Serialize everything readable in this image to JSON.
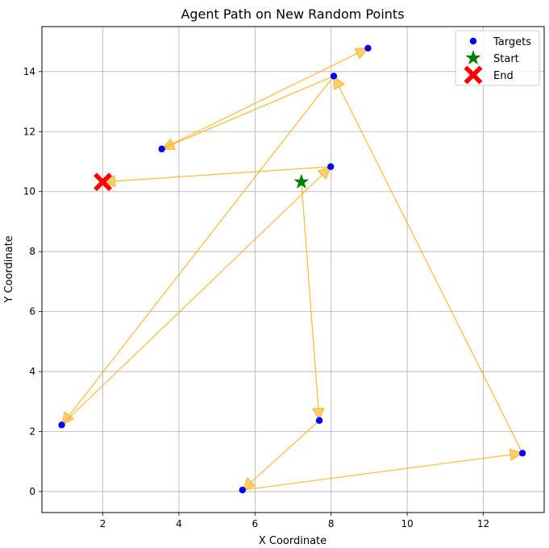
{
  "chart_data": {
    "type": "scatter",
    "title": "Agent Path on New Random Points",
    "xlabel": "X Coordinate",
    "ylabel": "Y Coordinate",
    "xlim": [
      0.4,
      13.6
    ],
    "ylim": [
      -0.7,
      15.5
    ],
    "xticks": [
      2,
      4,
      6,
      8,
      10,
      12
    ],
    "yticks": [
      0,
      2,
      4,
      6,
      8,
      10,
      12,
      14
    ],
    "grid": true,
    "legend_position": "top-right",
    "colors": {
      "targets": "#0000ff",
      "start": "#008000",
      "end": "#ff0000",
      "path": "#ffa500"
    },
    "legend": [
      {
        "label": "Targets",
        "marker": "circle",
        "color": "#0000ff"
      },
      {
        "label": "Start",
        "marker": "star",
        "color": "#008000"
      },
      {
        "label": "End",
        "marker": "x",
        "color": "#ff0000"
      }
    ],
    "targets": [
      {
        "x": 8.97,
        "y": 14.78
      },
      {
        "x": 8.07,
        "y": 13.85
      },
      {
        "x": 3.55,
        "y": 11.42
      },
      {
        "x": 7.99,
        "y": 10.83
      },
      {
        "x": 0.92,
        "y": 2.22
      },
      {
        "x": 7.69,
        "y": 2.37
      },
      {
        "x": 5.67,
        "y": 0.05
      },
      {
        "x": 13.03,
        "y": 1.28
      }
    ],
    "start": {
      "x": 7.22,
      "y": 10.32
    },
    "end": {
      "x": 2.0,
      "y": 10.32
    },
    "path": [
      {
        "x": 7.22,
        "y": 10.32
      },
      {
        "x": 7.69,
        "y": 2.37
      },
      {
        "x": 5.67,
        "y": 0.05
      },
      {
        "x": 13.03,
        "y": 1.28
      },
      {
        "x": 8.07,
        "y": 13.85
      },
      {
        "x": 0.92,
        "y": 2.22
      },
      {
        "x": 7.99,
        "y": 10.83
      },
      {
        "x": 2.0,
        "y": 10.32
      }
    ],
    "path_extra": [
      {
        "from": {
          "x": 3.55,
          "y": 11.42
        },
        "to": {
          "x": 8.97,
          "y": 14.78
        }
      },
      {
        "from": {
          "x": 8.07,
          "y": 13.85
        },
        "to": {
          "x": 3.55,
          "y": 11.42
        }
      }
    ]
  }
}
